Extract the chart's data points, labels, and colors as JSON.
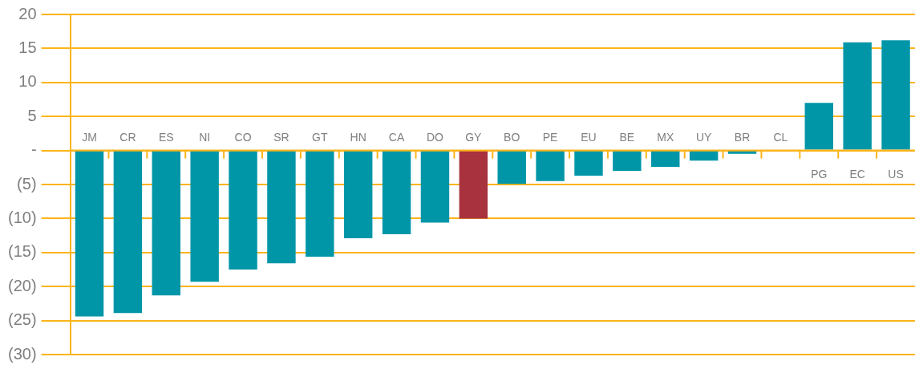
{
  "chart_data": {
    "type": "bar",
    "categories": [
      "JM",
      "CR",
      "ES",
      "NI",
      "CO",
      "SR",
      "GT",
      "HN",
      "CA",
      "DO",
      "GY",
      "BO",
      "PE",
      "EU",
      "BE",
      "MX",
      "UY",
      "BR",
      "CL",
      "PG",
      "EC",
      "US"
    ],
    "values": [
      -24.4,
      -23.9,
      -21.3,
      -19.3,
      -17.5,
      -16.6,
      -15.6,
      -12.9,
      -12.3,
      -10.6,
      -10.0,
      -4.9,
      -4.5,
      -3.7,
      -3.0,
      -2.4,
      -1.5,
      -0.5,
      0,
      7.0,
      15.9,
      16.2
    ],
    "colors": [
      "#0096a8",
      "#0096a8",
      "#0096a8",
      "#0096a8",
      "#0096a8",
      "#0096a8",
      "#0096a8",
      "#0096a8",
      "#0096a8",
      "#0096a8",
      "#a8323e",
      "#0096a8",
      "#0096a8",
      "#0096a8",
      "#0096a8",
      "#0096a8",
      "#0096a8",
      "#0096a8",
      "#0096a8",
      "#0096a8",
      "#0096a8",
      "#0096a8"
    ],
    "ylim": [
      -30,
      20
    ],
    "yticks": [
      20,
      15,
      10,
      5,
      {
        "value": 0,
        "label": "-"
      },
      {
        "value": -5,
        "label": "(5)"
      },
      {
        "value": -10,
        "label": "(10)"
      },
      {
        "value": -15,
        "label": "(15)"
      },
      {
        "value": -20,
        "label": "(20)"
      },
      {
        "value": -25,
        "label": "(25)"
      },
      {
        "value": -30,
        "label": "(30)"
      }
    ],
    "grid": "y"
  }
}
